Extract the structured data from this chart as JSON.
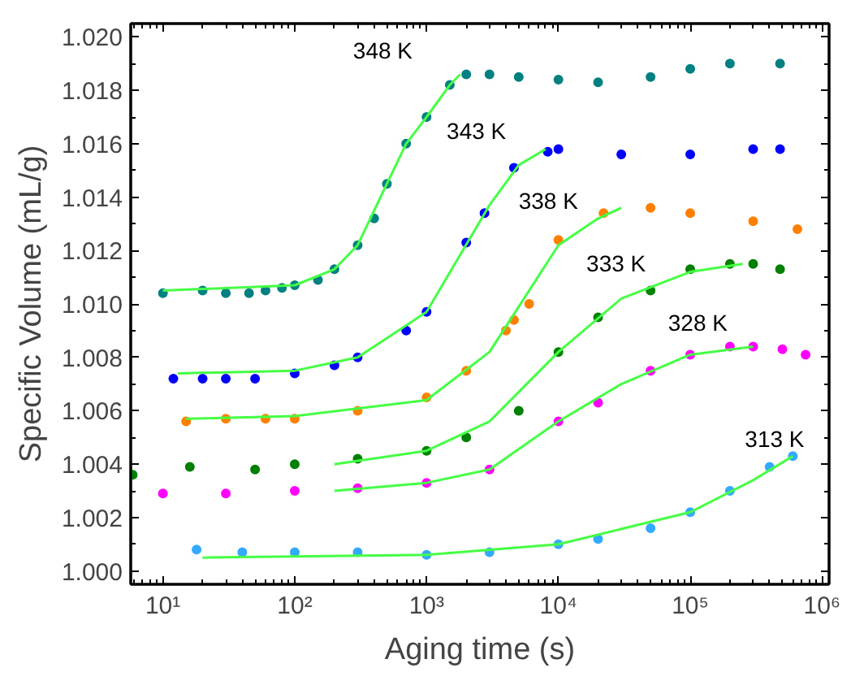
{
  "chart_data": {
    "type": "scatter",
    "xlabel": "Aging time (s)",
    "ylabel": "Specific Volume (mL/g)",
    "log": "x",
    "grid": false,
    "marker": "circle",
    "xlim": [
      5.7,
      1130000
    ],
    "ylim": [
      0.9995,
      1.0205
    ],
    "xticks": [
      {
        "value": 10,
        "label": "10¹"
      },
      {
        "value": 100,
        "label": "10²"
      },
      {
        "value": 1000,
        "label": "10³"
      },
      {
        "value": 10000,
        "label": "10⁴"
      },
      {
        "value": 100000,
        "label": "10⁵"
      },
      {
        "value": 1000000,
        "label": "10⁶"
      }
    ],
    "yticks": [
      {
        "value": 1.0,
        "label": "1.000"
      },
      {
        "value": 1.002,
        "label": "1.002"
      },
      {
        "value": 1.004,
        "label": "1.004"
      },
      {
        "value": 1.006,
        "label": "1.006"
      },
      {
        "value": 1.008,
        "label": "1.008"
      },
      {
        "value": 1.01,
        "label": "1.010"
      },
      {
        "value": 1.012,
        "label": "1.012"
      },
      {
        "value": 1.014,
        "label": "1.014"
      },
      {
        "value": 1.016,
        "label": "1.016"
      },
      {
        "value": 1.018,
        "label": "1.018"
      },
      {
        "value": 1.02,
        "label": "1.020"
      }
    ],
    "series": [
      {
        "name": "348 K",
        "color": "#008080",
        "x": [
          10,
          20,
          30,
          45,
          60,
          80,
          100,
          150,
          200,
          300,
          400,
          500,
          700,
          1000,
          1500,
          2000,
          3000,
          5000,
          10000,
          20000,
          50000,
          100000,
          200000,
          480000
        ],
        "values": [
          1.0104,
          1.0105,
          1.0104,
          1.0104,
          1.0105,
          1.0106,
          1.0107,
          1.0109,
          1.0113,
          1.0122,
          1.0132,
          1.0145,
          1.016,
          1.017,
          1.0182,
          1.0186,
          1.0186,
          1.0185,
          1.0184,
          1.0183,
          1.0185,
          1.0188,
          1.019,
          1.019
        ]
      },
      {
        "name": "343 K",
        "color": "#0000ff",
        "x": [
          12,
          20,
          30,
          50,
          100,
          200,
          300,
          700,
          1000,
          2000,
          2750,
          4600,
          8300,
          10000,
          30000,
          100000,
          300000,
          480000
        ],
        "values": [
          1.0072,
          1.0072,
          1.0072,
          1.0072,
          1.0074,
          1.0077,
          1.008,
          1.009,
          1.0097,
          1.0123,
          1.0134,
          1.0151,
          1.0157,
          1.0158,
          1.0156,
          1.0156,
          1.0158,
          1.0158
        ]
      },
      {
        "name": "338 K",
        "color": "#ff8000",
        "x": [
          15,
          30,
          60,
          100,
          300,
          1000,
          2000,
          4000,
          4600,
          6000,
          10000,
          22000,
          50000,
          100000,
          300000,
          650000
        ],
        "values": [
          1.0056,
          1.0057,
          1.0057,
          1.0057,
          1.006,
          1.0065,
          1.0075,
          1.009,
          1.0094,
          1.01,
          1.0124,
          1.0134,
          1.0136,
          1.0134,
          1.0131,
          1.0128
        ]
      },
      {
        "name": "333 K",
        "color": "#008000",
        "x": [
          5.9,
          16,
          50,
          100,
          300,
          1000,
          2000,
          5000,
          10000,
          20000,
          50000,
          100000,
          200000,
          300000,
          480000
        ],
        "values": [
          1.0036,
          1.0039,
          1.0038,
          1.004,
          1.0042,
          1.0045,
          1.005,
          1.006,
          1.0082,
          1.0095,
          1.0105,
          1.0113,
          1.0115,
          1.0115,
          1.0113
        ]
      },
      {
        "name": "328 K",
        "color": "#ff00ff",
        "x": [
          10,
          30,
          100,
          300,
          1000,
          3000,
          10000,
          20000,
          50000,
          100000,
          200000,
          300000,
          500000,
          750000
        ],
        "values": [
          1.0029,
          1.0029,
          1.003,
          1.0031,
          1.0033,
          1.0038,
          1.0056,
          1.0063,
          1.0075,
          1.0081,
          1.0084,
          1.0084,
          1.0083,
          1.0081
        ]
      },
      {
        "name": "313 K",
        "color": "#33aaff",
        "x": [
          18,
          40,
          100,
          300,
          1000,
          3000,
          10000,
          20000,
          50000,
          100000,
          200000,
          400000,
          600000
        ],
        "values": [
          1.0008,
          1.0007,
          1.0007,
          1.0007,
          1.0006,
          1.0007,
          1.001,
          1.0012,
          1.0016,
          1.0022,
          1.003,
          1.0039,
          1.0043
        ]
      },
      {
        "type": "line",
        "marker": "none",
        "color": "#44ff44",
        "x": [
          10,
          100,
          200,
          300,
          500,
          700,
          1000,
          1500,
          1800
        ],
        "values": [
          1.0105,
          1.0107,
          1.0113,
          1.0122,
          1.0145,
          1.016,
          1.017,
          1.0182,
          1.0186
        ]
      },
      {
        "type": "line",
        "marker": "none",
        "color": "#44ff44",
        "x": [
          13,
          100,
          300,
          1000,
          3000,
          5000,
          8000
        ],
        "values": [
          1.0074,
          1.0075,
          1.008,
          1.0097,
          1.0137,
          1.0152,
          1.0158
        ]
      },
      {
        "type": "line",
        "marker": "none",
        "color": "#44ff44",
        "x": [
          15,
          100,
          1000,
          3000,
          10000,
          20000,
          30000
        ],
        "values": [
          1.0057,
          1.0058,
          1.0064,
          1.0082,
          1.0122,
          1.0132,
          1.0136
        ]
      },
      {
        "type": "line",
        "marker": "none",
        "color": "#44ff44",
        "x": [
          200,
          1000,
          3000,
          10000,
          30000,
          100000,
          250000
        ],
        "values": [
          1.004,
          1.0045,
          1.0056,
          1.0082,
          1.0102,
          1.0112,
          1.0115
        ]
      },
      {
        "type": "line",
        "marker": "none",
        "color": "#44ff44",
        "x": [
          200,
          1000,
          3000,
          10000,
          30000,
          100000,
          300000
        ],
        "values": [
          1.003,
          1.0033,
          1.0038,
          1.0056,
          1.007,
          1.0081,
          1.0084
        ]
      },
      {
        "type": "line",
        "marker": "none",
        "color": "#44ff44",
        "x": [
          20,
          1000,
          10000,
          100000,
          300000,
          600000
        ],
        "values": [
          1.0005,
          1.0006,
          1.001,
          1.0022,
          1.0034,
          1.0043
        ]
      }
    ]
  }
}
